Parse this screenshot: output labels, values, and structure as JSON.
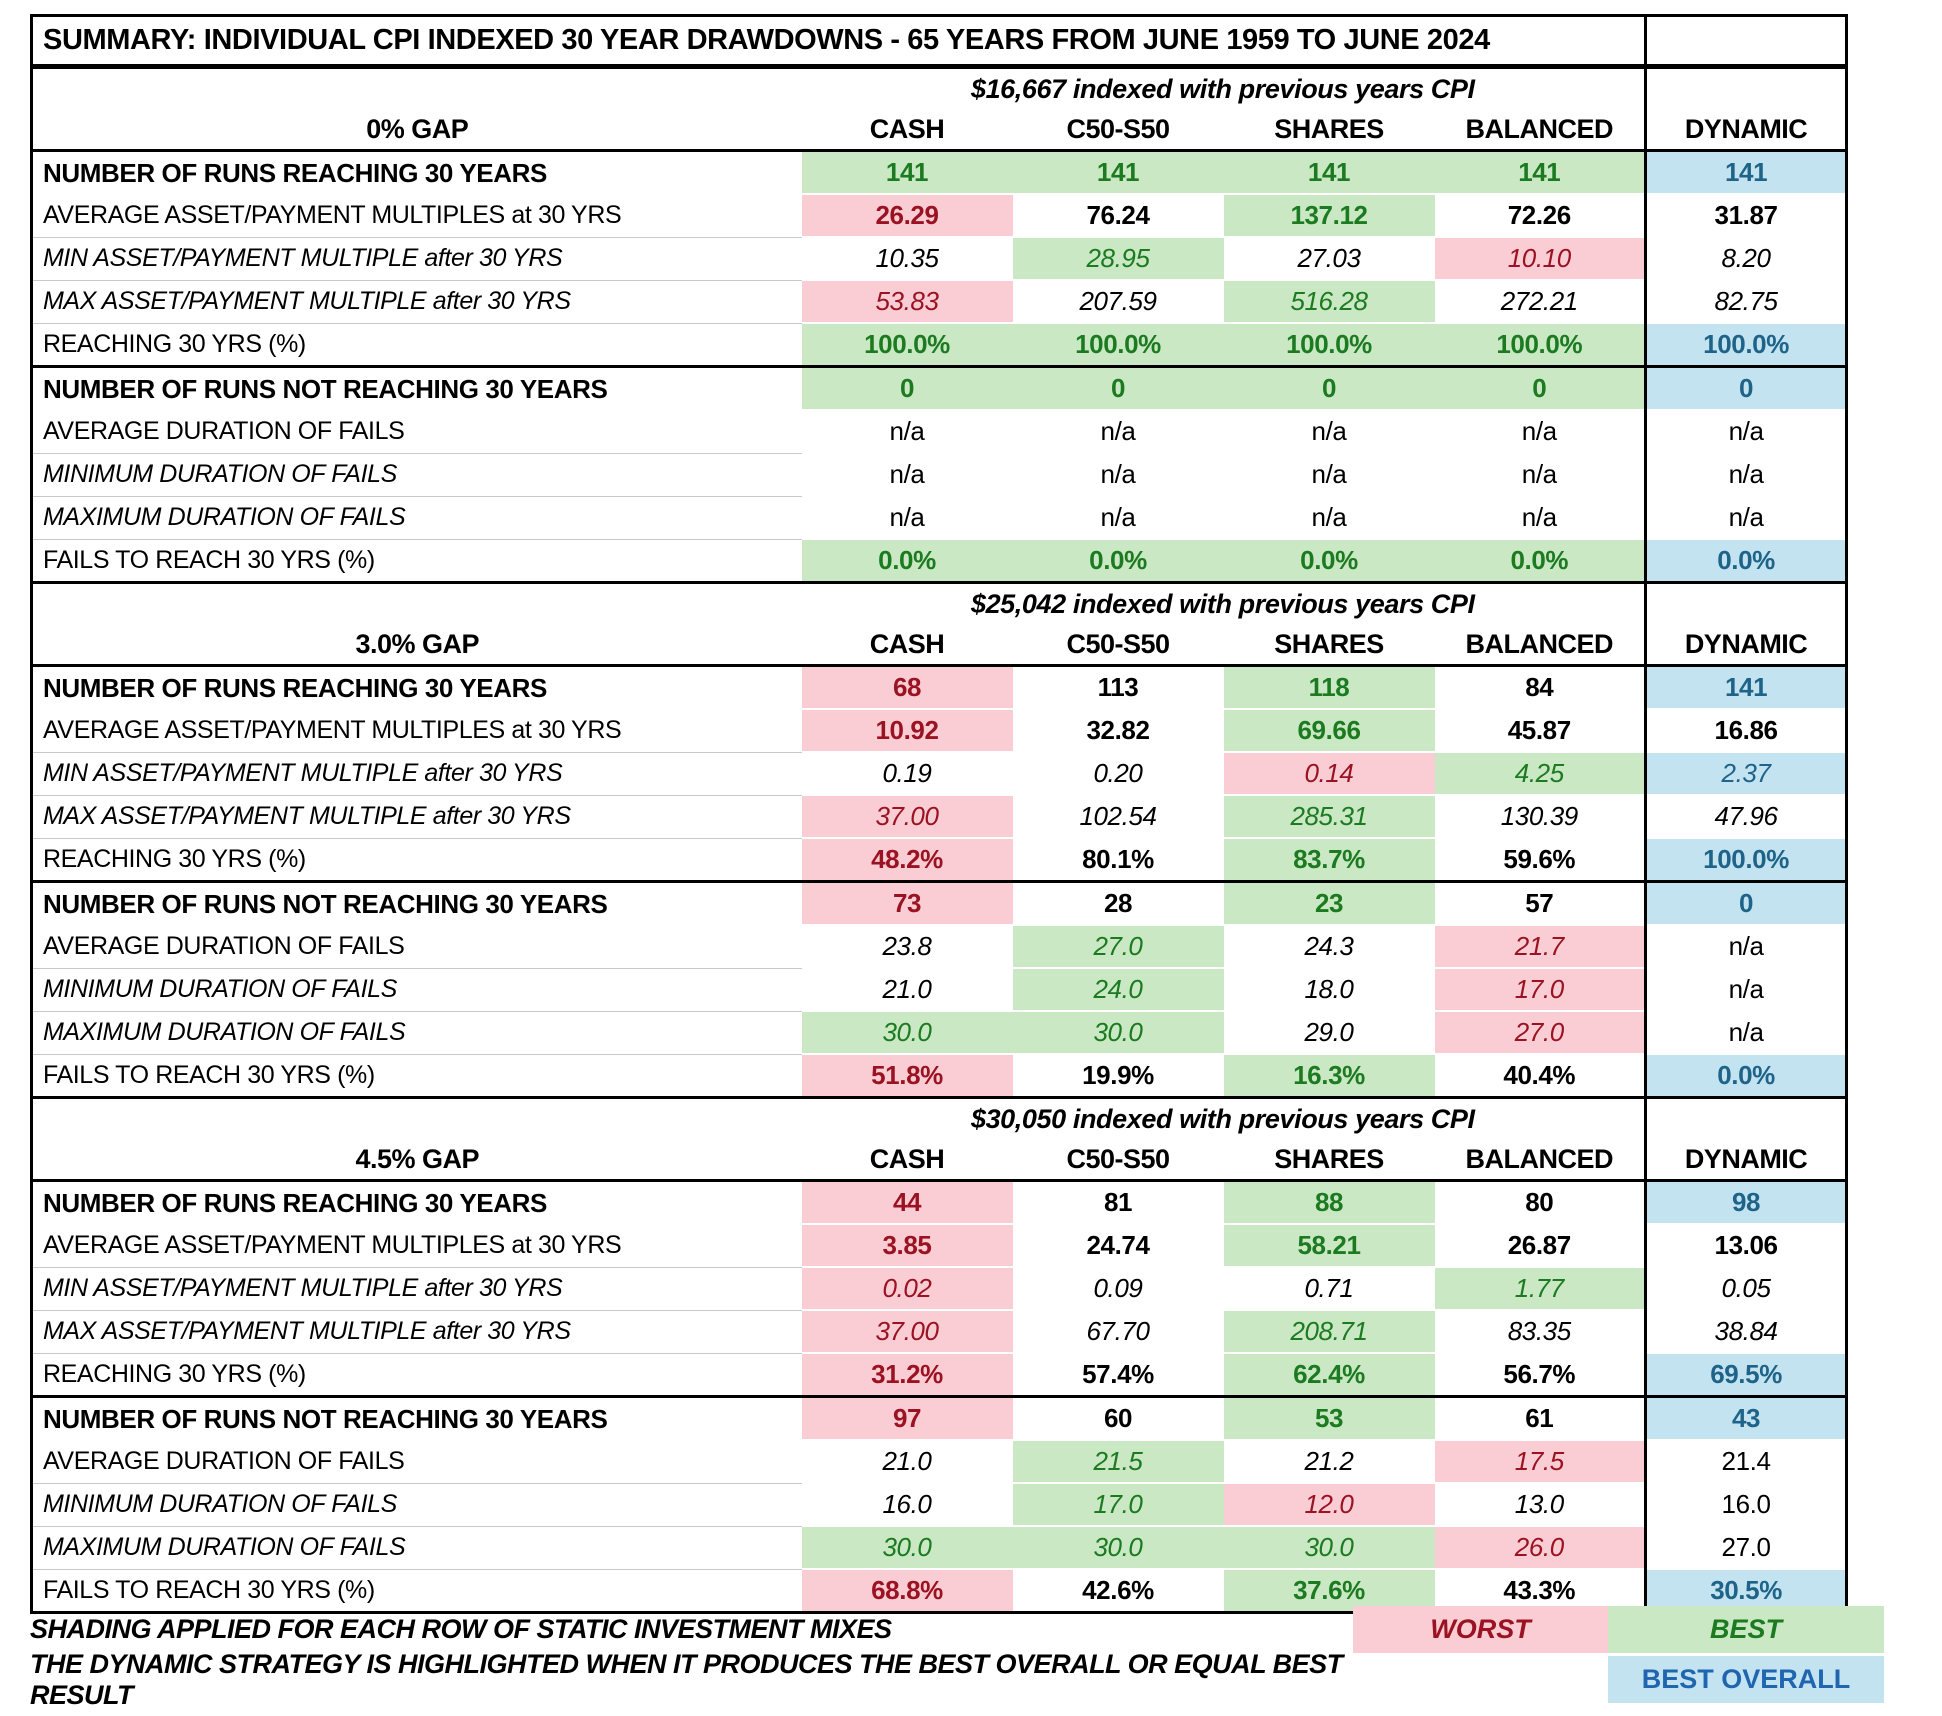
{
  "title": "SUMMARY:  INDIVIDUAL CPI INDEXED 30 YEAR DRAWDOWNS - 65 YEARS FROM JUNE 1959 TO JUNE 2024",
  "colors": {
    "worst_fill": "#f9cdd3",
    "worst_text": "#9b1322",
    "best_fill": "#c9e8c3",
    "best_text": "#1c7a21",
    "overall_fill": "#c3e3f1",
    "overall_text": "#1f6488",
    "legend_overall_text": "#2065b0"
  },
  "columns": [
    "CASH",
    "C50-S50",
    "SHARES",
    "BALANCED",
    "DYNAMIC"
  ],
  "row_labels": [
    {
      "text": "NUMBER OF RUNS  REACHING 30 YEARS",
      "style": "b"
    },
    {
      "text": "AVERAGE ASSET/PAYMENT MULTIPLES at 30 YRS",
      "style": "p"
    },
    {
      "text": "MIN ASSET/PAYMENT MULTIPLE after 30 YRS",
      "style": "i"
    },
    {
      "text": "MAX ASSET/PAYMENT MULTIPLE after 30 YRS",
      "style": "i"
    },
    {
      "text": "REACHING  30 YRS  (%)",
      "style": "p"
    },
    {
      "text": "NUMBER OF RUNS  NOT REACHING 30 YEARS",
      "style": "b"
    },
    {
      "text": "AVERAGE DURATION OF FAILS",
      "style": "p"
    },
    {
      "text": "MINIMUM DURATION OF FAILS",
      "style": "i"
    },
    {
      "text": "MAXIMUM DURATION OF FAILS",
      "style": "i"
    },
    {
      "text": "FAILS TO REACH 30 YRS  (%)",
      "style": "p"
    }
  ],
  "sections": [
    {
      "gap": "0% GAP",
      "subheader": "$16,667 indexed with previous years CPI",
      "rows": [
        [
          {
            "t": "141",
            "c": "best",
            "f": "b"
          },
          {
            "t": "141",
            "c": "best",
            "f": "b"
          },
          {
            "t": "141",
            "c": "best",
            "f": "b"
          },
          {
            "t": "141",
            "c": "best",
            "f": "b"
          },
          {
            "t": "141",
            "c": "overall",
            "f": "b"
          }
        ],
        [
          {
            "t": "26.29",
            "c": "worst",
            "f": "b"
          },
          {
            "t": "76.24",
            "c": "none",
            "f": "b"
          },
          {
            "t": "137.12",
            "c": "best",
            "f": "b"
          },
          {
            "t": "72.26",
            "c": "none",
            "f": "b"
          },
          {
            "t": "31.87",
            "c": "none",
            "f": "b"
          }
        ],
        [
          {
            "t": "10.35",
            "c": "none",
            "f": "i"
          },
          {
            "t": "28.95",
            "c": "best",
            "f": "i"
          },
          {
            "t": "27.03",
            "c": "none",
            "f": "i"
          },
          {
            "t": "10.10",
            "c": "worst",
            "f": "i"
          },
          {
            "t": "8.20",
            "c": "none",
            "f": "i"
          }
        ],
        [
          {
            "t": "53.83",
            "c": "worst",
            "f": "i"
          },
          {
            "t": "207.59",
            "c": "none",
            "f": "i"
          },
          {
            "t": "516.28",
            "c": "best",
            "f": "i"
          },
          {
            "t": "272.21",
            "c": "none",
            "f": "i"
          },
          {
            "t": "82.75",
            "c": "none",
            "f": "i"
          }
        ],
        [
          {
            "t": "100.0%",
            "c": "best",
            "f": "b"
          },
          {
            "t": "100.0%",
            "c": "best",
            "f": "b"
          },
          {
            "t": "100.0%",
            "c": "best",
            "f": "b"
          },
          {
            "t": "100.0%",
            "c": "best",
            "f": "b"
          },
          {
            "t": "100.0%",
            "c": "overall",
            "f": "b"
          }
        ],
        [
          {
            "t": "0",
            "c": "best",
            "f": "b"
          },
          {
            "t": "0",
            "c": "best",
            "f": "b"
          },
          {
            "t": "0",
            "c": "best",
            "f": "b"
          },
          {
            "t": "0",
            "c": "best",
            "f": "b"
          },
          {
            "t": "0",
            "c": "overall",
            "f": "b"
          }
        ],
        [
          {
            "t": "n/a",
            "c": "none",
            "f": "p"
          },
          {
            "t": "n/a",
            "c": "none",
            "f": "p"
          },
          {
            "t": "n/a",
            "c": "none",
            "f": "p"
          },
          {
            "t": "n/a",
            "c": "none",
            "f": "p"
          },
          {
            "t": "n/a",
            "c": "none",
            "f": "p"
          }
        ],
        [
          {
            "t": "n/a",
            "c": "none",
            "f": "p"
          },
          {
            "t": "n/a",
            "c": "none",
            "f": "p"
          },
          {
            "t": "n/a",
            "c": "none",
            "f": "p"
          },
          {
            "t": "n/a",
            "c": "none",
            "f": "p"
          },
          {
            "t": "n/a",
            "c": "none",
            "f": "p"
          }
        ],
        [
          {
            "t": "n/a",
            "c": "none",
            "f": "p"
          },
          {
            "t": "n/a",
            "c": "none",
            "f": "p"
          },
          {
            "t": "n/a",
            "c": "none",
            "f": "p"
          },
          {
            "t": "n/a",
            "c": "none",
            "f": "p"
          },
          {
            "t": "n/a",
            "c": "none",
            "f": "p"
          }
        ],
        [
          {
            "t": "0.0%",
            "c": "best",
            "f": "b"
          },
          {
            "t": "0.0%",
            "c": "best",
            "f": "b"
          },
          {
            "t": "0.0%",
            "c": "best",
            "f": "b"
          },
          {
            "t": "0.0%",
            "c": "best",
            "f": "b"
          },
          {
            "t": "0.0%",
            "c": "overall",
            "f": "b"
          }
        ]
      ]
    },
    {
      "gap": "3.0% GAP",
      "subheader": "$25,042 indexed with previous years CPI",
      "rows": [
        [
          {
            "t": "68",
            "c": "worst",
            "f": "b"
          },
          {
            "t": "113",
            "c": "none",
            "f": "b"
          },
          {
            "t": "118",
            "c": "best",
            "f": "b"
          },
          {
            "t": "84",
            "c": "none",
            "f": "b"
          },
          {
            "t": "141",
            "c": "overall",
            "f": "b"
          }
        ],
        [
          {
            "t": "10.92",
            "c": "worst",
            "f": "b"
          },
          {
            "t": "32.82",
            "c": "none",
            "f": "b"
          },
          {
            "t": "69.66",
            "c": "best",
            "f": "b"
          },
          {
            "t": "45.87",
            "c": "none",
            "f": "b"
          },
          {
            "t": "16.86",
            "c": "none",
            "f": "b"
          }
        ],
        [
          {
            "t": "0.19",
            "c": "none",
            "f": "i"
          },
          {
            "t": "0.20",
            "c": "none",
            "f": "i"
          },
          {
            "t": "0.14",
            "c": "worst",
            "f": "i"
          },
          {
            "t": "4.25",
            "c": "best",
            "f": "i"
          },
          {
            "t": "2.37",
            "c": "overall",
            "f": "i"
          }
        ],
        [
          {
            "t": "37.00",
            "c": "worst",
            "f": "i"
          },
          {
            "t": "102.54",
            "c": "none",
            "f": "i"
          },
          {
            "t": "285.31",
            "c": "best",
            "f": "i"
          },
          {
            "t": "130.39",
            "c": "none",
            "f": "i"
          },
          {
            "t": "47.96",
            "c": "none",
            "f": "i"
          }
        ],
        [
          {
            "t": "48.2%",
            "c": "worst",
            "f": "b"
          },
          {
            "t": "80.1%",
            "c": "none",
            "f": "b"
          },
          {
            "t": "83.7%",
            "c": "best",
            "f": "b"
          },
          {
            "t": "59.6%",
            "c": "none",
            "f": "b"
          },
          {
            "t": "100.0%",
            "c": "overall",
            "f": "b"
          }
        ],
        [
          {
            "t": "73",
            "c": "worst",
            "f": "b"
          },
          {
            "t": "28",
            "c": "none",
            "f": "b"
          },
          {
            "t": "23",
            "c": "best",
            "f": "b"
          },
          {
            "t": "57",
            "c": "none",
            "f": "b"
          },
          {
            "t": "0",
            "c": "overall",
            "f": "b"
          }
        ],
        [
          {
            "t": "23.8",
            "c": "none",
            "f": "i"
          },
          {
            "t": "27.0",
            "c": "best",
            "f": "i"
          },
          {
            "t": "24.3",
            "c": "none",
            "f": "i"
          },
          {
            "t": "21.7",
            "c": "worst",
            "f": "i"
          },
          {
            "t": "n/a",
            "c": "none",
            "f": "p"
          }
        ],
        [
          {
            "t": "21.0",
            "c": "none",
            "f": "i"
          },
          {
            "t": "24.0",
            "c": "best",
            "f": "i"
          },
          {
            "t": "18.0",
            "c": "none",
            "f": "i"
          },
          {
            "t": "17.0",
            "c": "worst",
            "f": "i"
          },
          {
            "t": "n/a",
            "c": "none",
            "f": "p"
          }
        ],
        [
          {
            "t": "30.0",
            "c": "best",
            "f": "i"
          },
          {
            "t": "30.0",
            "c": "best",
            "f": "i"
          },
          {
            "t": "29.0",
            "c": "none",
            "f": "i"
          },
          {
            "t": "27.0",
            "c": "worst",
            "f": "i"
          },
          {
            "t": "n/a",
            "c": "none",
            "f": "p"
          }
        ],
        [
          {
            "t": "51.8%",
            "c": "worst",
            "f": "b"
          },
          {
            "t": "19.9%",
            "c": "none",
            "f": "b"
          },
          {
            "t": "16.3%",
            "c": "best",
            "f": "b"
          },
          {
            "t": "40.4%",
            "c": "none",
            "f": "b"
          },
          {
            "t": "0.0%",
            "c": "overall",
            "f": "b"
          }
        ]
      ]
    },
    {
      "gap": "4.5% GAP",
      "subheader": "$30,050 indexed with previous years CPI",
      "rows": [
        [
          {
            "t": "44",
            "c": "worst",
            "f": "b"
          },
          {
            "t": "81",
            "c": "none",
            "f": "b"
          },
          {
            "t": "88",
            "c": "best",
            "f": "b"
          },
          {
            "t": "80",
            "c": "none",
            "f": "b"
          },
          {
            "t": "98",
            "c": "overall",
            "f": "b"
          }
        ],
        [
          {
            "t": "3.85",
            "c": "worst",
            "f": "b"
          },
          {
            "t": "24.74",
            "c": "none",
            "f": "b"
          },
          {
            "t": "58.21",
            "c": "best",
            "f": "b"
          },
          {
            "t": "26.87",
            "c": "none",
            "f": "b"
          },
          {
            "t": "13.06",
            "c": "none",
            "f": "b"
          }
        ],
        [
          {
            "t": "0.02",
            "c": "worst",
            "f": "i"
          },
          {
            "t": "0.09",
            "c": "none",
            "f": "i"
          },
          {
            "t": "0.71",
            "c": "none",
            "f": "i"
          },
          {
            "t": "1.77",
            "c": "best",
            "f": "i"
          },
          {
            "t": "0.05",
            "c": "none",
            "f": "i"
          }
        ],
        [
          {
            "t": "37.00",
            "c": "worst",
            "f": "i"
          },
          {
            "t": "67.70",
            "c": "none",
            "f": "i"
          },
          {
            "t": "208.71",
            "c": "best",
            "f": "i"
          },
          {
            "t": "83.35",
            "c": "none",
            "f": "i"
          },
          {
            "t": "38.84",
            "c": "none",
            "f": "i"
          }
        ],
        [
          {
            "t": "31.2%",
            "c": "worst",
            "f": "b"
          },
          {
            "t": "57.4%",
            "c": "none",
            "f": "b"
          },
          {
            "t": "62.4%",
            "c": "best",
            "f": "b"
          },
          {
            "t": "56.7%",
            "c": "none",
            "f": "b"
          },
          {
            "t": "69.5%",
            "c": "overall",
            "f": "b"
          }
        ],
        [
          {
            "t": "97",
            "c": "worst",
            "f": "b"
          },
          {
            "t": "60",
            "c": "none",
            "f": "b"
          },
          {
            "t": "53",
            "c": "best",
            "f": "b"
          },
          {
            "t": "61",
            "c": "none",
            "f": "b"
          },
          {
            "t": "43",
            "c": "overall",
            "f": "b"
          }
        ],
        [
          {
            "t": "21.0",
            "c": "none",
            "f": "i"
          },
          {
            "t": "21.5",
            "c": "best",
            "f": "i"
          },
          {
            "t": "21.2",
            "c": "none",
            "f": "i"
          },
          {
            "t": "17.5",
            "c": "worst",
            "f": "i"
          },
          {
            "t": "21.4",
            "c": "none",
            "f": "p"
          }
        ],
        [
          {
            "t": "16.0",
            "c": "none",
            "f": "i"
          },
          {
            "t": "17.0",
            "c": "best",
            "f": "i"
          },
          {
            "t": "12.0",
            "c": "worst",
            "f": "i"
          },
          {
            "t": "13.0",
            "c": "none",
            "f": "i"
          },
          {
            "t": "16.0",
            "c": "none",
            "f": "p"
          }
        ],
        [
          {
            "t": "30.0",
            "c": "best",
            "f": "i"
          },
          {
            "t": "30.0",
            "c": "best",
            "f": "i"
          },
          {
            "t": "30.0",
            "c": "best",
            "f": "i"
          },
          {
            "t": "26.0",
            "c": "worst",
            "f": "i"
          },
          {
            "t": "27.0",
            "c": "none",
            "f": "p"
          }
        ],
        [
          {
            "t": "68.8%",
            "c": "worst",
            "f": "b"
          },
          {
            "t": "42.6%",
            "c": "none",
            "f": "b"
          },
          {
            "t": "37.6%",
            "c": "best",
            "f": "b"
          },
          {
            "t": "43.3%",
            "c": "none",
            "f": "b"
          },
          {
            "t": "30.5%",
            "c": "overall",
            "f": "b"
          }
        ]
      ]
    }
  ],
  "legend": {
    "line1": "SHADING APPLIED FOR EACH ROW OF  STATIC INVESTMENT MIXES",
    "worst_label": "WORST",
    "best_label": "BEST",
    "line2": "THE DYNAMIC STRATEGY IS HIGHLIGHTED WHEN IT PRODUCES THE BEST OVERALL OR EQUAL BEST RESULT",
    "best_overall_label": "BEST OVERALL"
  }
}
